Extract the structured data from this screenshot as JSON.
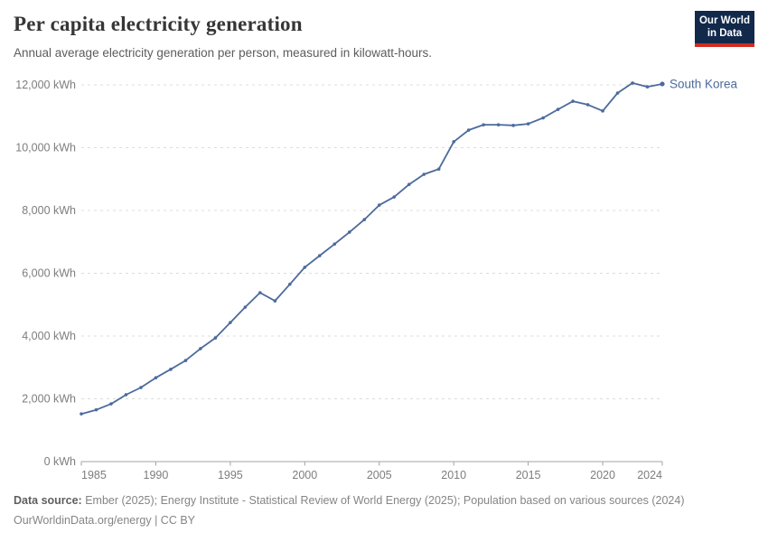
{
  "header": {
    "title": "Per capita electricity generation",
    "subtitle": "Annual average electricity generation per person, measured in kilowatt-hours.",
    "logo": {
      "line1": "Our World",
      "line2": "in Data",
      "bg_color": "#12294b",
      "bar_color": "#d12a1f"
    }
  },
  "chart_data": {
    "type": "line",
    "title": "Per capita electricity generation",
    "unit": "kWh",
    "xlim": [
      1985,
      2024
    ],
    "ylim": [
      0,
      12000
    ],
    "grid": "horizontal-dashed",
    "legend_position": "end-of-line",
    "series": [
      {
        "name": "South Korea",
        "color": "#4C6A9C",
        "x": [
          1985,
          1986,
          1987,
          1988,
          1989,
          1990,
          1991,
          1992,
          1993,
          1994,
          1995,
          1996,
          1997,
          1998,
          1999,
          2000,
          2001,
          2002,
          2003,
          2004,
          2005,
          2006,
          2007,
          2008,
          2009,
          2010,
          2011,
          2012,
          2013,
          2014,
          2015,
          2016,
          2017,
          2018,
          2019,
          2020,
          2021,
          2022,
          2023,
          2024
        ],
        "values": [
          1520,
          1650,
          1840,
          2130,
          2360,
          2670,
          2940,
          3220,
          3600,
          3940,
          4430,
          4920,
          5380,
          5120,
          5650,
          6190,
          6560,
          6930,
          7310,
          7710,
          8170,
          8430,
          8830,
          9150,
          9320,
          10190,
          10560,
          10730,
          10730,
          10710,
          10760,
          10950,
          11220,
          11480,
          11370,
          11170,
          11740,
          12060,
          11940,
          12030
        ]
      }
    ],
    "x_ticks": [
      {
        "year": 1985,
        "label": "1985",
        "align": "start"
      },
      {
        "year": 1990,
        "label": "1990",
        "align": "middle"
      },
      {
        "year": 1995,
        "label": "1995",
        "align": "middle"
      },
      {
        "year": 2000,
        "label": "2000",
        "align": "middle"
      },
      {
        "year": 2005,
        "label": "2005",
        "align": "middle"
      },
      {
        "year": 2010,
        "label": "2010",
        "align": "middle"
      },
      {
        "year": 2015,
        "label": "2015",
        "align": "middle"
      },
      {
        "year": 2020,
        "label": "2020",
        "align": "middle"
      },
      {
        "year": 2024,
        "label": "2024",
        "align": "end"
      }
    ],
    "y_ticks": [
      {
        "value": 0,
        "label": "0 kWh"
      },
      {
        "value": 2000,
        "label": "2,000 kWh"
      },
      {
        "value": 4000,
        "label": "4,000 kWh"
      },
      {
        "value": 6000,
        "label": "6,000 kWh"
      },
      {
        "value": 8000,
        "label": "8,000 kWh"
      },
      {
        "value": 10000,
        "label": "10,000 kWh"
      },
      {
        "value": 12000,
        "label": "12,000 kWh"
      }
    ],
    "end_label": "South Korea",
    "colors": {
      "gridline": "#dcdcdc",
      "axis": "#a3a3a3",
      "tick_text": "#7d7d7d"
    }
  },
  "footer": {
    "source_label": "Data source:",
    "source_text": " Ember (2025); Energy Institute - Statistical Review of World Energy (2025); Population based on various sources (2024)",
    "link_line": "OurWorldinData.org/energy | CC BY"
  }
}
